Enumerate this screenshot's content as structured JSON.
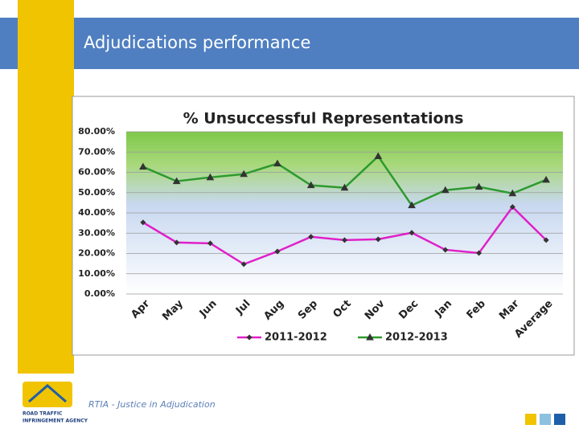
{
  "slide": {
    "title": "Adjudications performance",
    "footer": "RTIA - Justice in Adjudication",
    "logo_lines": [
      "ROAD TRAFFIC",
      "INFRINGEMENT AGENCY"
    ]
  },
  "chart_data": {
    "type": "line",
    "title": "% Unsuccessful Representations",
    "categories": [
      "Apr",
      "May",
      "Jun",
      "Jul",
      "Aug",
      "Sep",
      "Oct",
      "Nov",
      "Dec",
      "Jan",
      "Feb",
      "Mar",
      "Average"
    ],
    "series": [
      {
        "name": "2011-2012",
        "color": "#e020c8",
        "marker": "diamond",
        "values": [
          35.3,
          25.4,
          25.0,
          14.7,
          21.0,
          28.2,
          26.6,
          27.0,
          30.2,
          21.8,
          20.2,
          42.9,
          26.6
        ]
      },
      {
        "name": "2012-2013",
        "color": "#2e9a2e",
        "marker": "triangle",
        "values": [
          62.7,
          55.6,
          57.5,
          59.1,
          64.3,
          53.6,
          52.4,
          67.9,
          43.7,
          51.2,
          52.8,
          49.6,
          56.3
        ]
      }
    ],
    "ylim": [
      0,
      80
    ],
    "yticks": [
      {
        "value": 0,
        "label": "0.00%"
      },
      {
        "value": 10,
        "label": "10.00%"
      },
      {
        "value": 20,
        "label": "20.00%"
      },
      {
        "value": 30,
        "label": "30.00%"
      },
      {
        "value": 40,
        "label": "40.00%"
      },
      {
        "value": 50,
        "label": "50.00%"
      },
      {
        "value": 60,
        "label": "60.00%"
      },
      {
        "value": 70,
        "label": "70.00%"
      },
      {
        "value": 80,
        "label": "80.00%"
      }
    ],
    "grid": true,
    "legend": "bottom"
  }
}
